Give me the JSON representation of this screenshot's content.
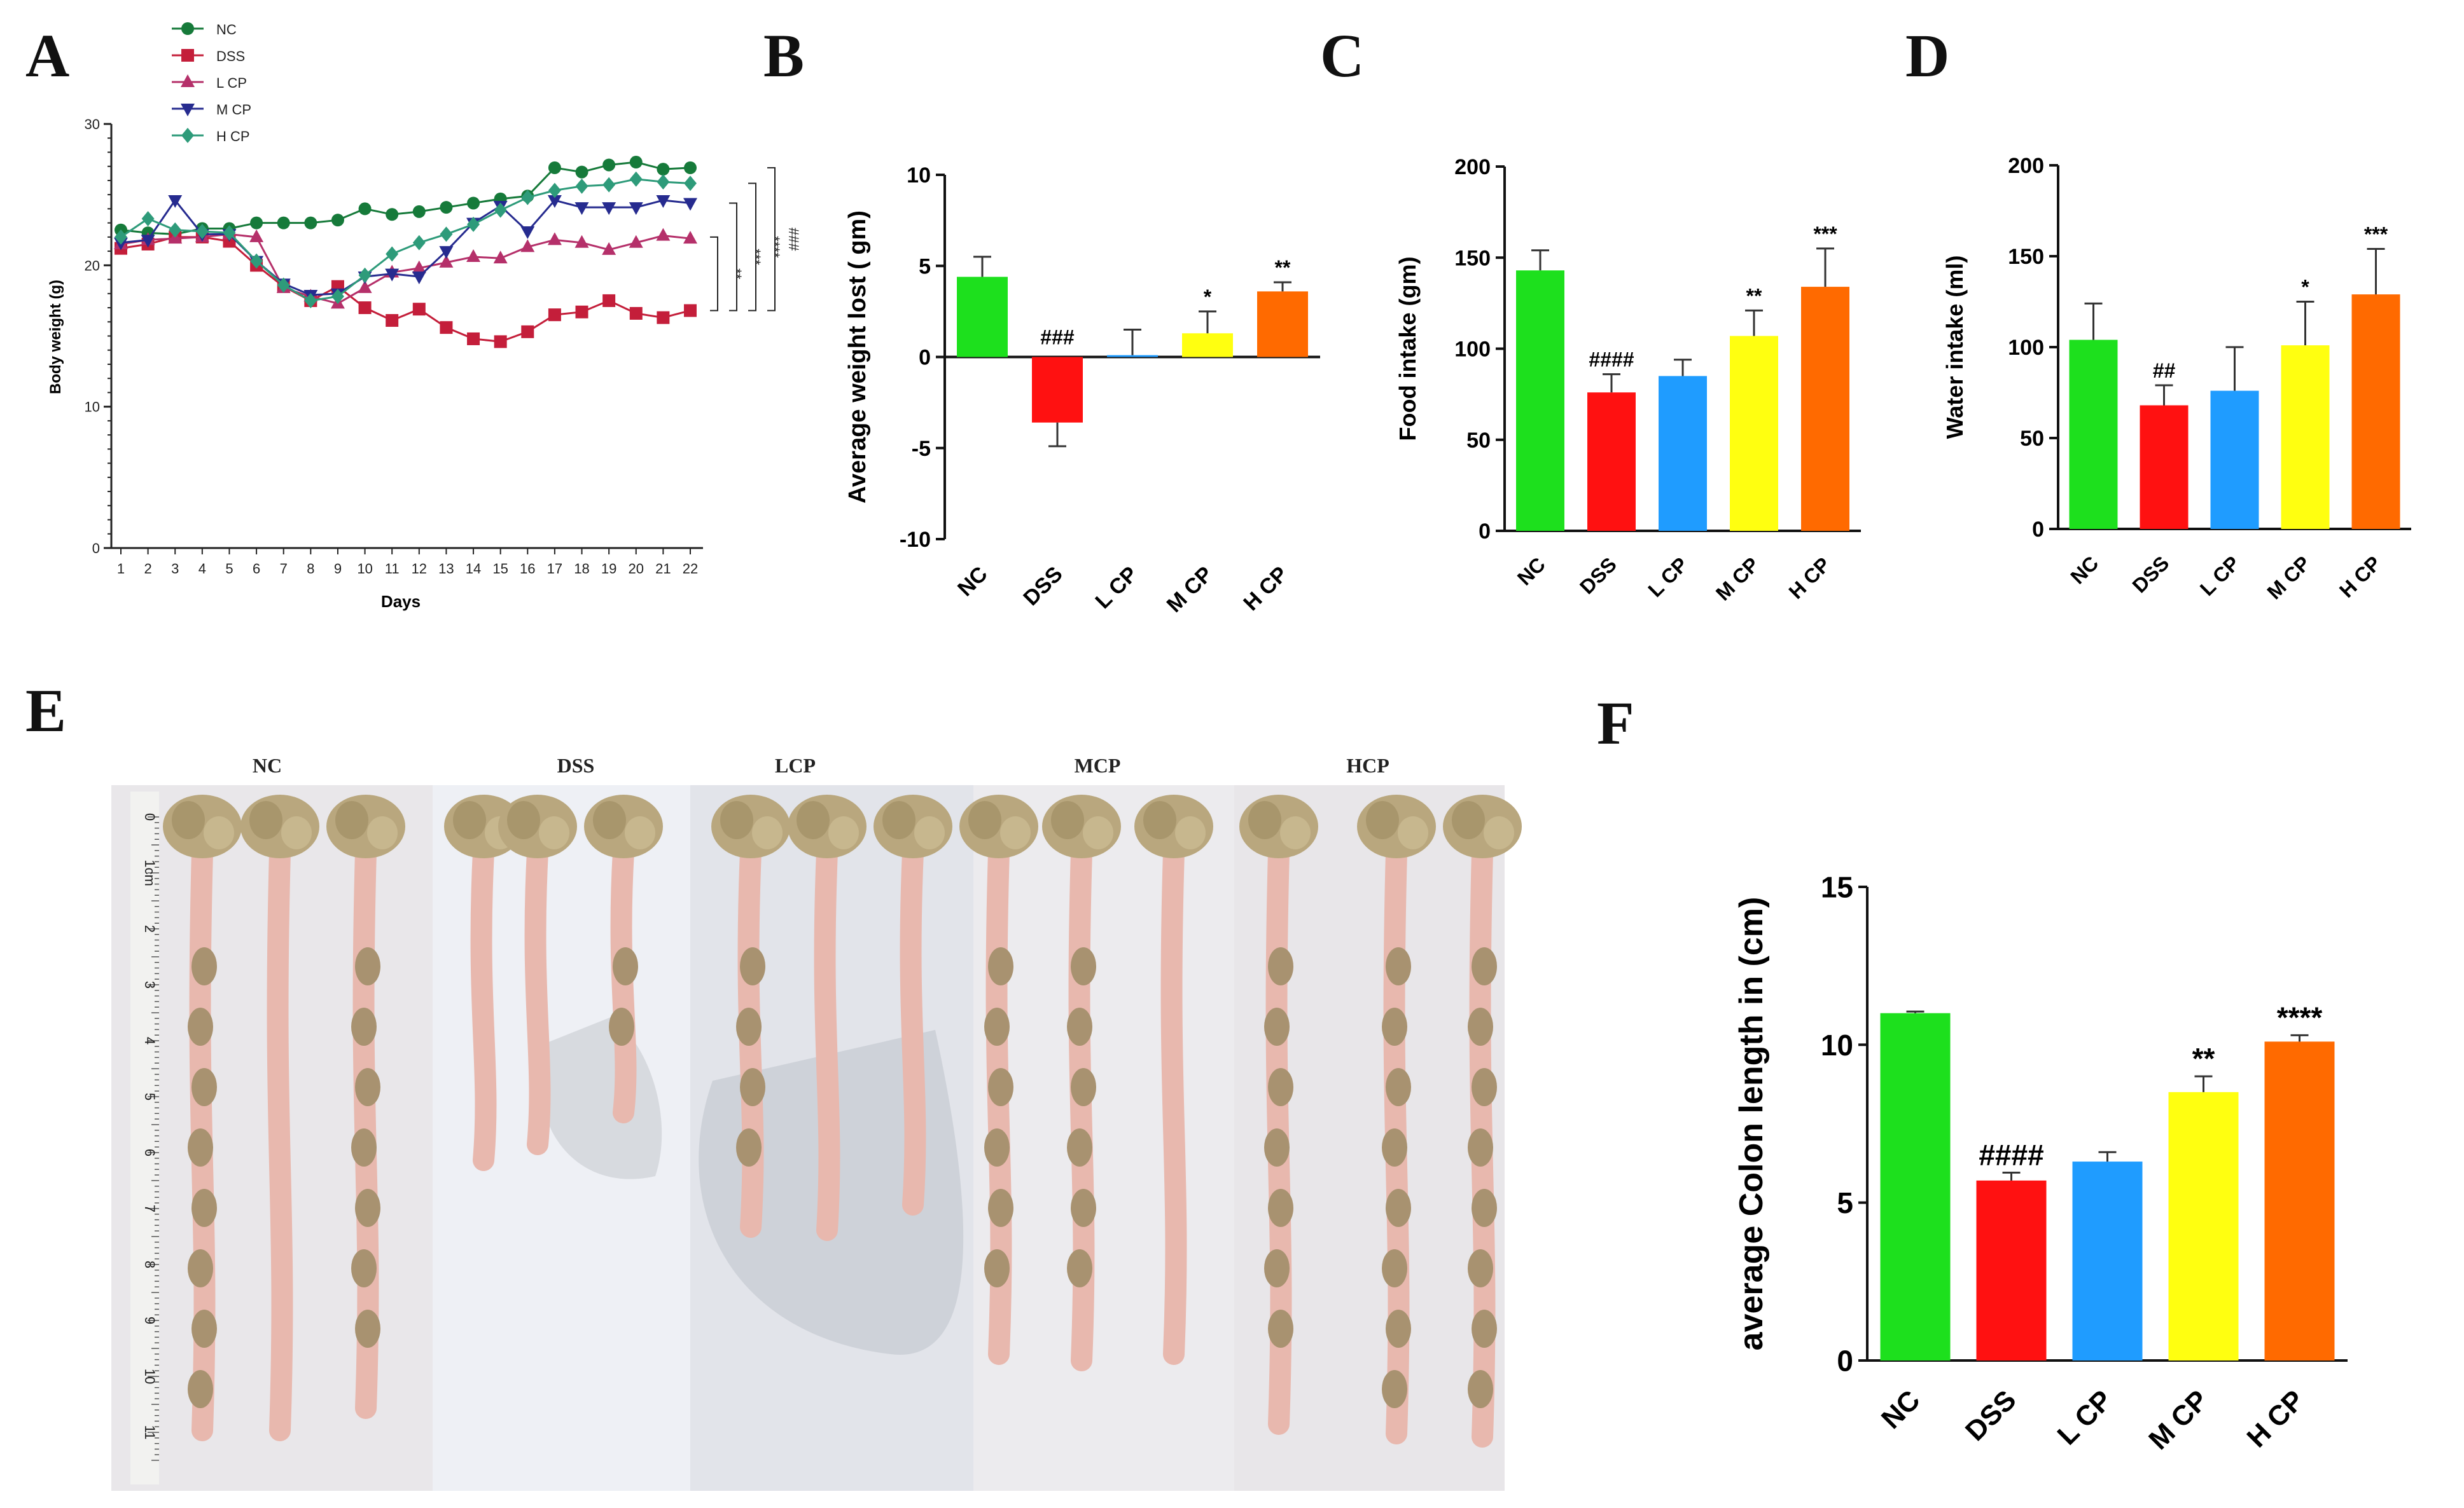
{
  "panel_labels": {
    "a": "A",
    "b": "B",
    "c": "C",
    "d": "D",
    "e": "E",
    "f": "F"
  },
  "colors": {
    "NC": "#1de01d",
    "DSS": "#ff1111",
    "L CP": "#1f9cff",
    "M CP": "#ffff10",
    "H CP": "#ff6a00",
    "line_NC": "#167a3a",
    "line_DSS": "#c41e3a",
    "line_LCP": "#b5306a",
    "line_MCP": "#262b8f",
    "line_HCP": "#2e9b7a"
  },
  "chart_data": [
    {
      "id": "A",
      "type": "line",
      "title": "",
      "xlabel": "Days",
      "ylabel": "Body weight (g)",
      "ylim": [
        0,
        30
      ],
      "yticks": [
        0,
        10,
        20,
        30
      ],
      "x": [
        1,
        2,
        3,
        4,
        5,
        6,
        7,
        8,
        9,
        10,
        11,
        12,
        13,
        14,
        15,
        16,
        17,
        18,
        19,
        20,
        21,
        22
      ],
      "legend_position": "top-left",
      "series": [
        {
          "name": "NC",
          "marker": "circle",
          "values": [
            22.5,
            22.3,
            22.2,
            22.6,
            22.6,
            23.0,
            23.0,
            23.0,
            23.2,
            24.0,
            23.6,
            23.8,
            24.1,
            24.4,
            24.7,
            24.9,
            26.9,
            26.6,
            27.1,
            27.3,
            26.8,
            26.9
          ]
        },
        {
          "name": "DSS",
          "marker": "square",
          "values": [
            21.2,
            21.5,
            22.0,
            22.0,
            21.7,
            20.0,
            18.5,
            17.5,
            18.5,
            17.0,
            16.1,
            16.9,
            15.6,
            14.8,
            14.6,
            15.3,
            16.5,
            16.7,
            17.5,
            16.6,
            16.3,
            16.8
          ]
        },
        {
          "name": "L CP",
          "marker": "triangle-up",
          "values": [
            21.5,
            21.8,
            21.9,
            22.0,
            22.2,
            22.0,
            18.4,
            17.8,
            17.3,
            18.4,
            19.5,
            19.8,
            20.2,
            20.6,
            20.5,
            21.3,
            21.8,
            21.6,
            21.1,
            21.6,
            22.1,
            21.9
          ]
        },
        {
          "name": "M CP",
          "marker": "triangle-down",
          "values": [
            21.6,
            21.8,
            24.6,
            22.2,
            22.2,
            20.3,
            18.7,
            17.9,
            18.0,
            19.2,
            19.4,
            19.2,
            21.0,
            23.0,
            24.2,
            22.4,
            24.6,
            24.1,
            24.1,
            24.1,
            24.6,
            24.4
          ]
        },
        {
          "name": "H CP",
          "marker": "diamond",
          "values": [
            22.0,
            23.3,
            22.5,
            22.4,
            22.3,
            20.3,
            18.6,
            17.5,
            17.8,
            19.3,
            20.8,
            21.6,
            22.2,
            22.9,
            23.9,
            24.8,
            25.3,
            25.6,
            25.7,
            26.1,
            25.9,
            25.8
          ]
        }
      ],
      "significance": [
        "**",
        "***",
        "****",
        "###"
      ]
    },
    {
      "id": "B",
      "type": "bar",
      "title": "",
      "categories": [
        "NC",
        "DSS",
        "L CP",
        "M CP",
        "H CP"
      ],
      "values": [
        4.4,
        -3.6,
        0.1,
        1.3,
        3.6
      ],
      "errors": [
        1.1,
        1.3,
        1.4,
        1.2,
        0.5
      ],
      "annotations": [
        "",
        "###",
        "",
        "*",
        "**"
      ],
      "ylabel": "Average weight lost ( gm)",
      "ylim": [
        -10,
        10
      ],
      "yticks": [
        -10,
        -5,
        0,
        5,
        10
      ]
    },
    {
      "id": "C",
      "type": "bar",
      "title": "",
      "categories": [
        "NC",
        "DSS",
        "L CP",
        "M CP",
        "H CP"
      ],
      "values": [
        143,
        76,
        85,
        107,
        134
      ],
      "errors": [
        11,
        10,
        9,
        14,
        21
      ],
      "annotations": [
        "",
        "####",
        "",
        "**",
        "***"
      ],
      "ylabel": "Food intake (gm)",
      "ylim": [
        0,
        200
      ],
      "yticks": [
        0,
        50,
        100,
        150,
        200
      ]
    },
    {
      "id": "D",
      "type": "bar",
      "title": "",
      "categories": [
        "NC",
        "DSS",
        "L CP",
        "M CP",
        "H CP"
      ],
      "values": [
        104,
        68,
        76,
        101,
        129
      ],
      "errors": [
        20,
        11,
        24,
        24,
        25
      ],
      "annotations": [
        "",
        "##",
        "",
        "*",
        "***"
      ],
      "ylabel": "Water intake (ml)",
      "ylim": [
        0,
        200
      ],
      "yticks": [
        0,
        50,
        100,
        150,
        200
      ]
    },
    {
      "id": "F",
      "type": "bar",
      "title": "",
      "categories": [
        "NC",
        "DSS",
        "L CP",
        "M CP",
        "H CP"
      ],
      "values": [
        11.0,
        5.7,
        6.3,
        8.5,
        10.1
      ],
      "errors": [
        0.05,
        0.25,
        0.3,
        0.5,
        0.2
      ],
      "annotations": [
        "",
        "####",
        "",
        "**",
        "****"
      ],
      "ylabel": "average Colon length in (cm)",
      "ylim": [
        0,
        15
      ],
      "yticks": [
        0,
        5,
        10,
        15
      ]
    }
  ],
  "photo": {
    "group_labels": [
      "NC",
      "DSS",
      "LCP",
      "MCP",
      "HCP"
    ],
    "ruler_numbers": [
      "0",
      "1cm",
      "2",
      "3",
      "4",
      "5",
      "6",
      "7",
      "8",
      "9",
      "10",
      "11"
    ]
  }
}
